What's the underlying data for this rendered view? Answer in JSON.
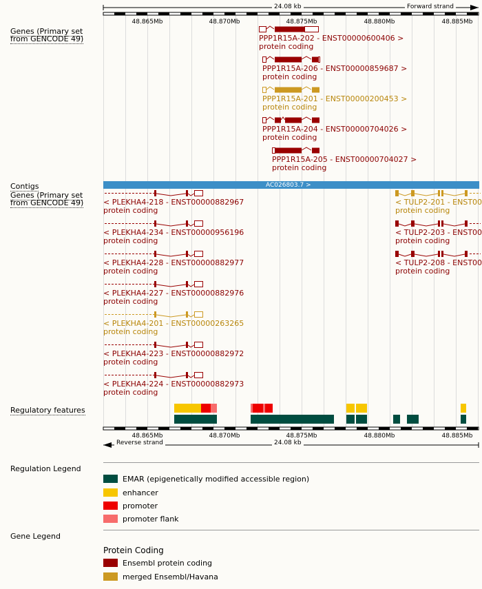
{
  "scale": {
    "top_span": "24.08 kb",
    "top_strand": "Forward strand",
    "bottom_span": "24.08 kb",
    "bottom_strand": "Reverse strand",
    "ticks": [
      "48.865Mb",
      "48.870Mb",
      "48.875Mb",
      "48.880Mb",
      "48.885Mb"
    ]
  },
  "tracks": {
    "genes_forward_label": "Genes (Primary set from GENCODE 49)",
    "contigs_label": "Contigs",
    "genes_reverse_label": "Genes (Primary set from GENCODE 49)",
    "regulatory_label": "Regulatory features"
  },
  "contig": {
    "name": "AC026803.7 >"
  },
  "forward_transcripts": [
    {
      "name": "PPP1R15A-202 - ENST00000600406 >",
      "biotype": "protein coding"
    },
    {
      "name": "PPP1R15A-206 - ENST00000859687 >",
      "biotype": "protein coding"
    },
    {
      "name": "PPP1R15A-201 - ENST00000200453 >",
      "biotype": "protein coding"
    },
    {
      "name": "PPP1R15A-204 - ENST00000704026 >",
      "biotype": "protein coding"
    },
    {
      "name": "PPP1R15A-205 - ENST00000704027 >",
      "biotype": "protein coding"
    }
  ],
  "reverse_transcripts_left": [
    {
      "name": "< PLEKHA4-218 - ENST00000882967",
      "biotype": "protein coding"
    },
    {
      "name": "< PLEKHA4-234 - ENST00000956196",
      "biotype": "protein coding"
    },
    {
      "name": "< PLEKHA4-228 - ENST00000882977",
      "biotype": "protein coding"
    },
    {
      "name": "< PLEKHA4-227 - ENST00000882976",
      "biotype": "protein coding"
    },
    {
      "name": "< PLEKHA4-201 - ENST00000263265",
      "biotype": "protein coding"
    },
    {
      "name": "< PLEKHA4-223 - ENST00000882972",
      "biotype": "protein coding"
    },
    {
      "name": "< PLEKHA4-224 - ENST00000882973",
      "biotype": "protein coding"
    }
  ],
  "reverse_transcripts_right": [
    {
      "name": "< TULP2-201 - ENST0000",
      "biotype": "protein coding"
    },
    {
      "name": "< TULP2-203 - ENST0000",
      "biotype": "protein coding"
    },
    {
      "name": "< TULP2-208 - ENST0000",
      "biotype": "protein coding"
    }
  ],
  "regulation_legend": {
    "title": "Regulation Legend",
    "items": [
      {
        "label": "EMAR (epigenetically modified accessible region)",
        "color": "#004d40"
      },
      {
        "label": "enhancer",
        "color": "#f7c600"
      },
      {
        "label": "promoter",
        "color": "#ee0000"
      },
      {
        "label": "promoter flank",
        "color": "#f76c6c"
      }
    ]
  },
  "gene_legend": {
    "title": "Gene Legend",
    "subtitle": "Protein Coding",
    "items": [
      {
        "label": "Ensembl protein coding",
        "color": "#990000"
      },
      {
        "label": "merged Ensembl/Havana",
        "color": "#cc9922"
      }
    ]
  },
  "colors": {
    "ensembl": "#990000",
    "merged": "#cc9922",
    "label_red": "#8b0000",
    "label_gold": "#b8860b",
    "contig": "#3c8fc7"
  }
}
